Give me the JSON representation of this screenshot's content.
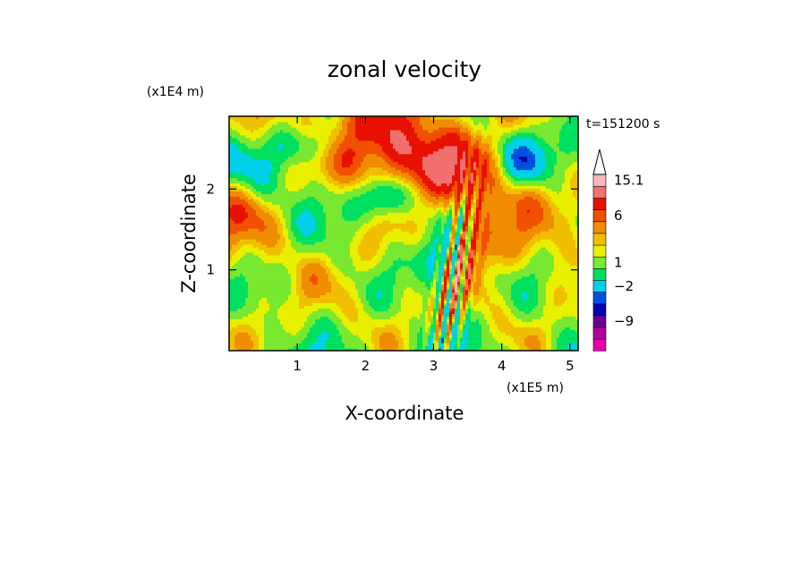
{
  "chart_data": {
    "type": "heatmap",
    "title": "zonal velocity",
    "xlabel": "X-coordinate",
    "ylabel": "Z-coordinate",
    "x_unit": "(x1E5 m)",
    "y_unit": "(x1E4 m)",
    "time_label": "t=151200 s",
    "xlim": [
      0,
      5.12
    ],
    "ylim": [
      0,
      2.9
    ],
    "x_ticks": [
      "1",
      "2",
      "3",
      "4",
      "5"
    ],
    "y_ticks": [
      "1",
      "2"
    ],
    "colorbar": {
      "tick_labels": [
        "15.1",
        "6",
        "1",
        "-2",
        "-9"
      ],
      "levels": [
        "#e800a8",
        "#b4009c",
        "#6c0090",
        "#0000b4",
        "#0050e0",
        "#00d0e8",
        "#00e060",
        "#78e830",
        "#e8f000",
        "#f0c000",
        "#f08c00",
        "#f05000",
        "#e81000",
        "#f07070",
        "#f8b8b8"
      ],
      "extend": "max"
    },
    "notes": "2-D contour field of zonal velocity over x (0–5.12e5 m) and z (0–2.9e4 m); greens/yellows dominate near surface, oranges aloft on left, blues/purples embedded in a tilted band near x≈3–4."
  }
}
